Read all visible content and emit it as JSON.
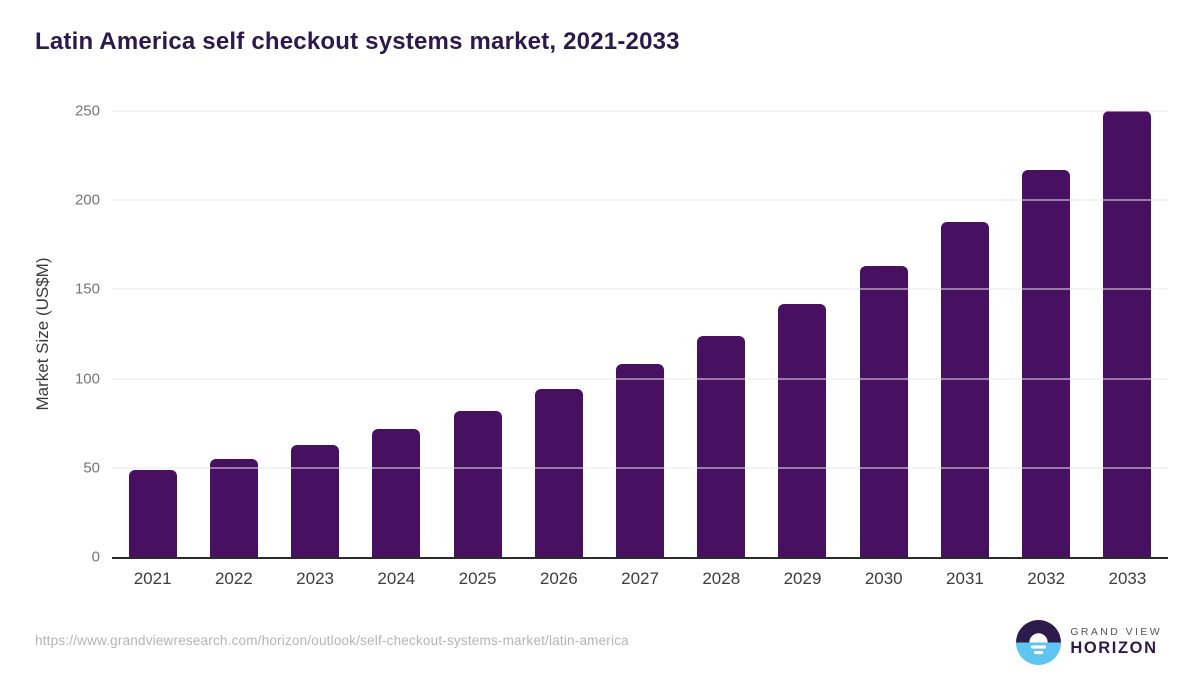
{
  "chart_data": {
    "type": "bar",
    "title": "Latin America self checkout systems market, 2021-2033",
    "categories": [
      "2021",
      "2022",
      "2023",
      "2024",
      "2025",
      "2026",
      "2027",
      "2028",
      "2029",
      "2030",
      "2031",
      "2032",
      "2033"
    ],
    "values": [
      49,
      55,
      63,
      72,
      82,
      94,
      108,
      124,
      142,
      163,
      188,
      217,
      250
    ],
    "xlabel": "",
    "ylabel": "Market Size (US$M)",
    "ylim": [
      0,
      250
    ],
    "yticks": [
      0,
      50,
      100,
      150,
      200,
      250
    ],
    "grid": true,
    "legend": false,
    "bar_color": "#471061"
  },
  "colors": {
    "title_text": "#2d1a4d",
    "bar": "#471061",
    "gridline": "#e8e8e8",
    "axis_line": "#2b2b2b",
    "y_tick_text": "#757575",
    "x_tick_text": "#3d3d3d",
    "url_text": "#b4b4b4",
    "logo_dark": "#2d1b4c",
    "logo_blue": "#5ec4f0"
  },
  "footer": {
    "source_url": "https://www.grandviewresearch.com/horizon/outlook/self-checkout-systems-market/latin-america",
    "logo": {
      "top_text": "GRAND VIEW",
      "bottom_text": "HORIZON",
      "icon": "horizon-sunrise-icon"
    }
  }
}
